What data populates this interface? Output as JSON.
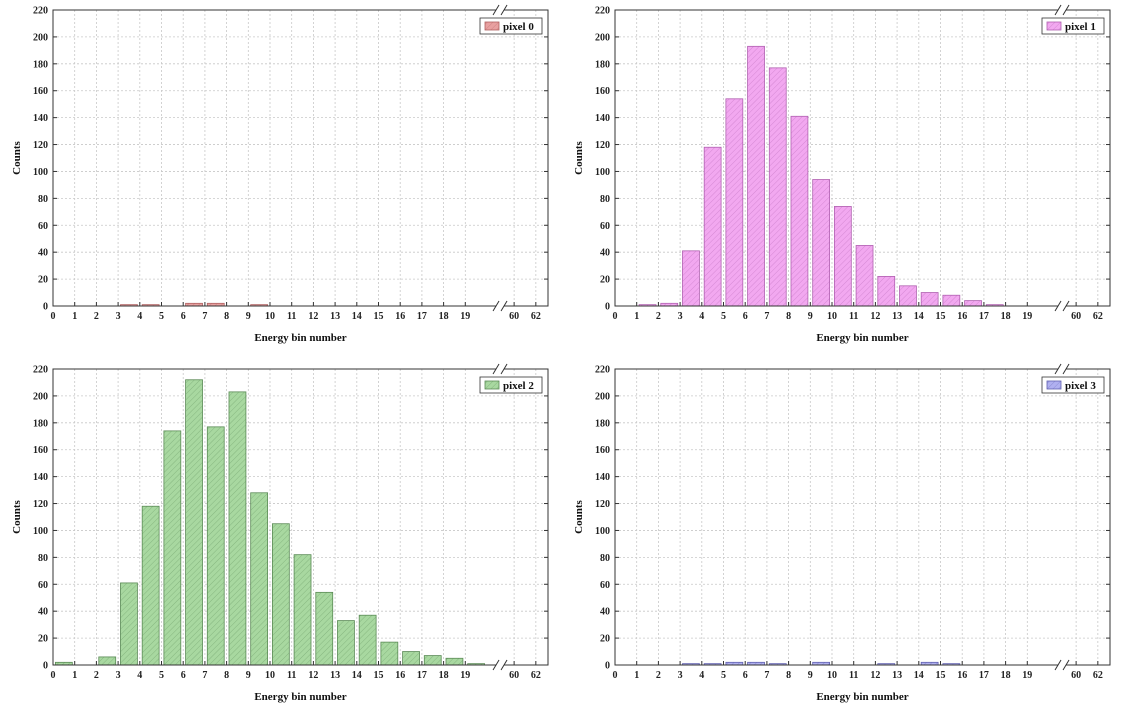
{
  "chart_data": [
    {
      "type": "bar",
      "title": "",
      "xlabel": "Energy bin number",
      "ylabel": "Counts",
      "ylim": [
        0,
        220
      ],
      "yticks": [
        0,
        20,
        40,
        60,
        80,
        100,
        120,
        140,
        160,
        180,
        200,
        220
      ],
      "categories": [
        "0",
        "1",
        "2",
        "3",
        "4",
        "5",
        "6",
        "7",
        "8",
        "9",
        "10",
        "11",
        "12",
        "13",
        "14",
        "15",
        "16",
        "17",
        "18",
        "19",
        "60",
        "62"
      ],
      "x_axis_break": "between 19 and 60",
      "grid": true,
      "legend_position": "top-right",
      "series": [
        {
          "name": "pixel 0",
          "color": "#e8a0a0",
          "edge_color": "#b06060",
          "values": [
            0,
            0,
            0,
            1,
            1,
            0,
            2,
            2,
            0,
            1,
            0,
            0,
            0,
            0,
            0,
            0,
            0,
            0,
            0,
            0,
            0,
            0
          ]
        }
      ]
    },
    {
      "type": "bar",
      "title": "",
      "xlabel": "Energy bin number",
      "ylabel": "Counts",
      "ylim": [
        0,
        220
      ],
      "yticks": [
        0,
        20,
        40,
        60,
        80,
        100,
        120,
        140,
        160,
        180,
        200,
        220
      ],
      "categories": [
        "0",
        "1",
        "2",
        "3",
        "4",
        "5",
        "6",
        "7",
        "8",
        "9",
        "10",
        "11",
        "12",
        "13",
        "14",
        "15",
        "16",
        "17",
        "18",
        "19",
        "60",
        "62"
      ],
      "x_axis_break": "between 19 and 60",
      "grid": true,
      "legend_position": "top-right",
      "series": [
        {
          "name": "pixel 1",
          "color": "#f2a8f0",
          "edge_color": "#b060b0",
          "values": [
            0,
            1,
            2,
            41,
            118,
            154,
            193,
            177,
            141,
            94,
            74,
            45,
            22,
            15,
            10,
            8,
            4,
            1,
            0,
            0,
            0,
            0
          ]
        }
      ]
    },
    {
      "type": "bar",
      "title": "",
      "xlabel": "Energy bin number",
      "ylabel": "Counts",
      "ylim": [
        0,
        220
      ],
      "yticks": [
        0,
        20,
        40,
        60,
        80,
        100,
        120,
        140,
        160,
        180,
        200,
        220
      ],
      "categories": [
        "0",
        "1",
        "2",
        "3",
        "4",
        "5",
        "6",
        "7",
        "8",
        "9",
        "10",
        "11",
        "12",
        "13",
        "14",
        "15",
        "16",
        "17",
        "18",
        "19",
        "60",
        "62"
      ],
      "x_axis_break": "between 19 and 60",
      "grid": true,
      "legend_position": "top-right",
      "series": [
        {
          "name": "pixel 2",
          "color": "#a8d8a0",
          "edge_color": "#5a8a55",
          "values": [
            2,
            0,
            6,
            61,
            118,
            174,
            212,
            177,
            203,
            128,
            105,
            82,
            54,
            33,
            37,
            17,
            10,
            7,
            5,
            1,
            0,
            0
          ]
        }
      ]
    },
    {
      "type": "bar",
      "title": "",
      "xlabel": "Energy bin number",
      "ylabel": "Counts",
      "ylim": [
        0,
        220
      ],
      "yticks": [
        0,
        20,
        40,
        60,
        80,
        100,
        120,
        140,
        160,
        180,
        200,
        220
      ],
      "categories": [
        "0",
        "1",
        "2",
        "3",
        "4",
        "5",
        "6",
        "7",
        "8",
        "9",
        "10",
        "11",
        "12",
        "13",
        "14",
        "15",
        "16",
        "17",
        "18",
        "19",
        "60",
        "62"
      ],
      "x_axis_break": "between 19 and 60",
      "grid": true,
      "legend_position": "top-right",
      "series": [
        {
          "name": "pixel 3",
          "color": "#b0b0f0",
          "edge_color": "#6060b0",
          "values": [
            0,
            0,
            0,
            1,
            1,
            2,
            2,
            1,
            0,
            2,
            0,
            0,
            1,
            0,
            2,
            1,
            0,
            0,
            0,
            0,
            0,
            0
          ]
        }
      ]
    }
  ]
}
